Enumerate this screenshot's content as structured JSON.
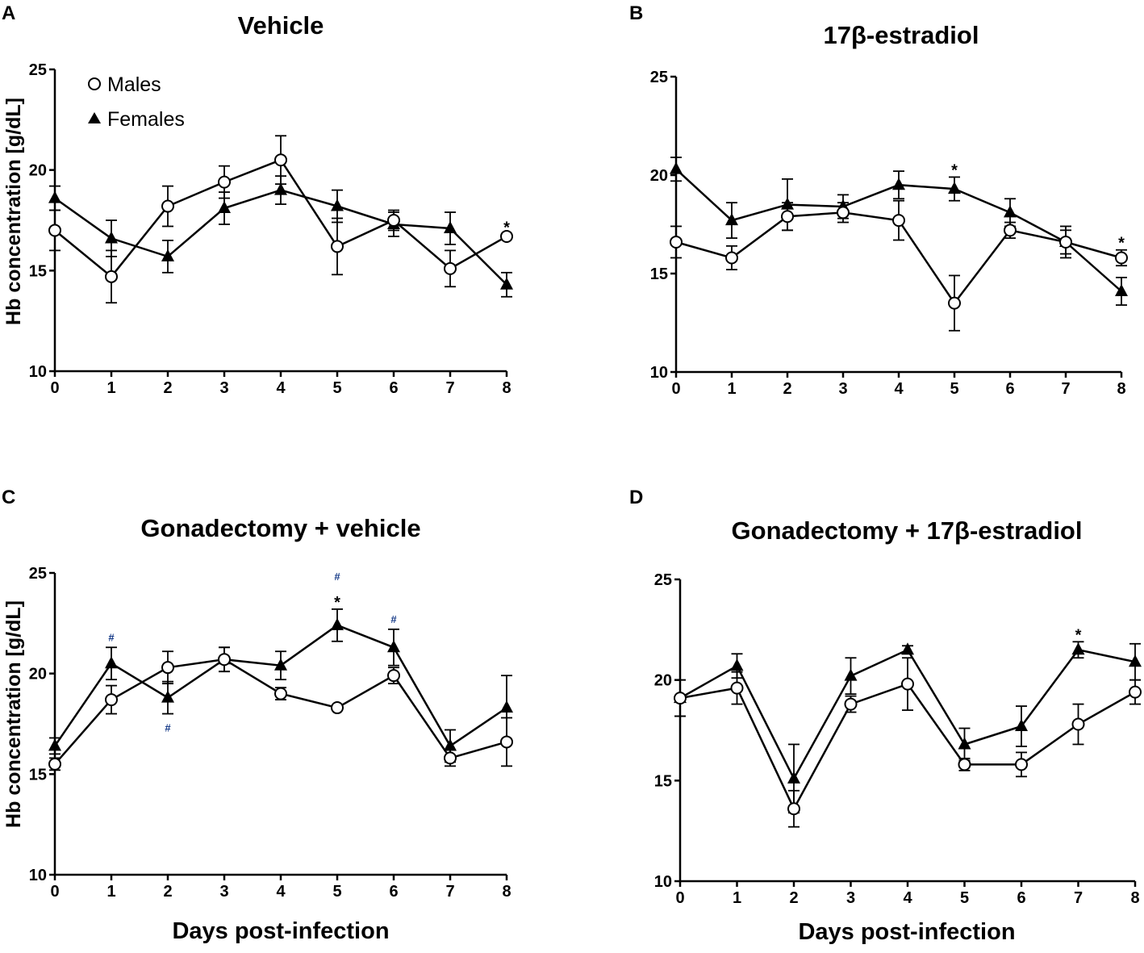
{
  "colors": {
    "ink": "#000000",
    "hash_mark": "#1a3e8a",
    "star_blue": "#2a4a9a"
  },
  "legend": {
    "males": "Males",
    "females": "Females"
  },
  "chart_data": [
    {
      "panel": "A",
      "type": "line",
      "title": "Vehicle",
      "xlabel": "",
      "ylabel": "Hb concentration [g/dL]",
      "x": [
        0,
        1,
        2,
        3,
        4,
        5,
        6,
        7,
        8
      ],
      "ylim": [
        10,
        25
      ],
      "yticks": [
        10,
        15,
        20,
        25
      ],
      "legend": "top-left",
      "series": [
        {
          "name": "Males",
          "marker": "open-circle",
          "values": [
            17.0,
            14.7,
            18.2,
            19.4,
            20.5,
            16.2,
            17.5,
            15.1,
            16.7
          ],
          "errors": [
            1.0,
            1.3,
            1.0,
            0.8,
            1.2,
            1.4,
            0.5,
            0.9,
            0.1
          ]
        },
        {
          "name": "Females",
          "marker": "filled-triangle",
          "values": [
            18.6,
            16.6,
            15.7,
            18.1,
            19.0,
            18.2,
            17.3,
            17.1,
            14.3
          ],
          "errors": [
            0.6,
            0.9,
            0.8,
            0.8,
            0.7,
            0.8,
            0.6,
            0.8,
            0.6
          ]
        }
      ],
      "annotations": [
        {
          "x": 8,
          "text": "*",
          "colorKey": "star_blue"
        }
      ]
    },
    {
      "panel": "B",
      "type": "line",
      "title": "17β-estradiol",
      "xlabel": "",
      "ylabel": "",
      "x": [
        0,
        1,
        2,
        3,
        4,
        5,
        6,
        7,
        8
      ],
      "ylim": [
        10,
        25
      ],
      "yticks": [
        10,
        15,
        20,
        25
      ],
      "series": [
        {
          "name": "Males",
          "marker": "open-circle",
          "values": [
            16.6,
            15.8,
            17.9,
            18.1,
            17.7,
            13.5,
            17.2,
            16.6,
            15.8
          ],
          "errors": [
            0.8,
            0.6,
            0.7,
            0.5,
            1.0,
            1.4,
            0.4,
            0.6,
            0.4
          ]
        },
        {
          "name": "Females",
          "marker": "filled-triangle",
          "values": [
            20.3,
            17.7,
            18.5,
            18.4,
            19.5,
            19.3,
            18.1,
            16.6,
            14.1
          ],
          "errors": [
            0.6,
            0.9,
            1.3,
            0.6,
            0.7,
            0.6,
            0.7,
            0.8,
            0.7
          ]
        }
      ],
      "annotations": [
        {
          "x": 5,
          "text": "*",
          "colorKey": "ink"
        },
        {
          "x": 8,
          "text": "*",
          "colorKey": "ink"
        }
      ]
    },
    {
      "panel": "C",
      "type": "line",
      "title": "Gonadectomy + vehicle",
      "xlabel": "Days post-infection",
      "ylabel": "Hb concentration [g/dL]",
      "x": [
        0,
        1,
        2,
        3,
        4,
        5,
        6,
        7,
        8
      ],
      "ylim": [
        10,
        25
      ],
      "yticks": [
        10,
        15,
        20,
        25
      ],
      "series": [
        {
          "name": "Males",
          "marker": "open-circle",
          "values": [
            15.5,
            18.7,
            20.3,
            20.7,
            19.0,
            18.3,
            19.9,
            15.8,
            16.6
          ],
          "errors": [
            0.3,
            0.7,
            0.8,
            0.6,
            0.3,
            0.1,
            0.4,
            0.4,
            1.2
          ]
        },
        {
          "name": "Females",
          "marker": "filled-triangle",
          "values": [
            16.4,
            20.5,
            18.8,
            20.7,
            20.4,
            22.4,
            21.3,
            16.4,
            18.3
          ],
          "errors": [
            0.4,
            0.8,
            0.8,
            0.6,
            0.7,
            0.8,
            0.9,
            0.8,
            1.6
          ]
        }
      ],
      "annotations": [
        {
          "x": 1,
          "text": "#",
          "colorKey": "hash_mark",
          "pos": "above"
        },
        {
          "x": 2,
          "text": "#",
          "colorKey": "hash_mark",
          "pos": "below"
        },
        {
          "x": 5,
          "text": "#",
          "colorKey": "hash_mark",
          "pos": "above-high"
        },
        {
          "x": 5,
          "text": "*",
          "colorKey": "ink",
          "pos": "above"
        },
        {
          "x": 6,
          "text": "#",
          "colorKey": "hash_mark",
          "pos": "above"
        }
      ]
    },
    {
      "panel": "D",
      "type": "line",
      "title": "Gonadectomy + 17β-estradiol",
      "xlabel": "Days post-infection",
      "ylabel": "",
      "x": [
        0,
        1,
        2,
        3,
        4,
        5,
        6,
        7,
        8
      ],
      "ylim": [
        10,
        25
      ],
      "yticks": [
        10,
        15,
        20,
        25
      ],
      "series": [
        {
          "name": "Males",
          "marker": "open-circle",
          "values": [
            19.1,
            19.6,
            13.6,
            18.8,
            19.8,
            15.8,
            15.8,
            17.8,
            19.4
          ],
          "errors": [
            0.9,
            0.8,
            0.9,
            0.4,
            1.3,
            0.3,
            0.6,
            1.0,
            0.6
          ]
        },
        {
          "name": "Females",
          "marker": "filled-triangle",
          "values": [
            19.1,
            20.7,
            15.1,
            20.2,
            21.5,
            16.8,
            17.7,
            21.5,
            20.9
          ],
          "errors": [
            0.9,
            0.6,
            1.7,
            0.9,
            0.2,
            0.8,
            1.0,
            0.4,
            0.9
          ]
        }
      ],
      "annotations": [
        {
          "x": 7,
          "text": "*",
          "colorKey": "ink",
          "pos": "above"
        }
      ]
    }
  ]
}
